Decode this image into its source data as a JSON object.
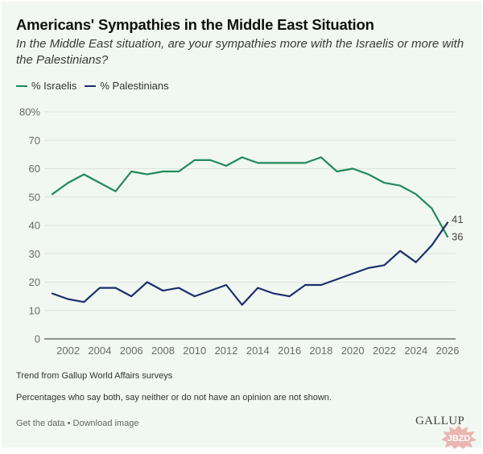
{
  "header": {
    "title": "Americans' Sympathies in the Middle East Situation",
    "subtitle": "In the Middle East situation, are your sympathies more with the Israelis or more with the Palestinians?"
  },
  "colors": {
    "israelis": "#1f8a5b",
    "palestinians": "#1b2f6b",
    "background": "#f1f7f1",
    "grid": "#dde3dd",
    "axis": "#555555"
  },
  "chart_data": {
    "type": "line",
    "title": "Americans' Sympathies in the Middle East Situation",
    "xlabel": "",
    "ylabel": "",
    "ylim": [
      0,
      80
    ],
    "xlim": [
      2001,
      2026
    ],
    "yticks": [
      0,
      10,
      20,
      30,
      40,
      50,
      60,
      70,
      80
    ],
    "ytick_labels": [
      "0",
      "10",
      "20",
      "30",
      "40",
      "50",
      "60",
      "70",
      "80%"
    ],
    "xticks": [
      2002,
      2004,
      2006,
      2008,
      2010,
      2012,
      2014,
      2016,
      2018,
      2020,
      2022,
      2024,
      2026
    ],
    "xtick_labels": [
      "2002",
      "2004",
      "2006",
      "2008",
      "2010",
      "2012",
      "2014",
      "2016",
      "2018",
      "2020",
      "2022",
      "2024",
      "2026"
    ],
    "grid": true,
    "legend_position": "top-left",
    "x": [
      2001,
      2002,
      2003,
      2004,
      2005,
      2006,
      2007,
      2008,
      2009,
      2010,
      2011,
      2012,
      2013,
      2014,
      2015,
      2016,
      2017,
      2018,
      2019,
      2020,
      2021,
      2022,
      2023,
      2024,
      2025,
      2026
    ],
    "series": [
      {
        "name": "% Israelis",
        "key": "israelis",
        "values": [
          51,
          55,
          58,
          55,
          52,
          59,
          58,
          59,
          59,
          63,
          63,
          61,
          64,
          62,
          62,
          62,
          62,
          64,
          59,
          60,
          58,
          55,
          54,
          51,
          46,
          36
        ],
        "end_label": "36"
      },
      {
        "name": "% Palestinians",
        "key": "palestinians",
        "values": [
          16,
          14,
          13,
          18,
          18,
          15,
          20,
          17,
          18,
          15,
          17,
          19,
          12,
          18,
          16,
          15,
          19,
          19,
          21,
          23,
          25,
          26,
          31,
          27,
          33,
          41
        ],
        "end_label": "41"
      }
    ]
  },
  "notes": {
    "source": "Trend from Gallup World Affairs surveys",
    "footnote": "Percentages who say both, say neither or do not have an opinion are not shown."
  },
  "links": {
    "get_data": "Get the data",
    "separator": " • ",
    "download": "Download image"
  },
  "logo": "GALLUP",
  "watermark": "JBZD"
}
